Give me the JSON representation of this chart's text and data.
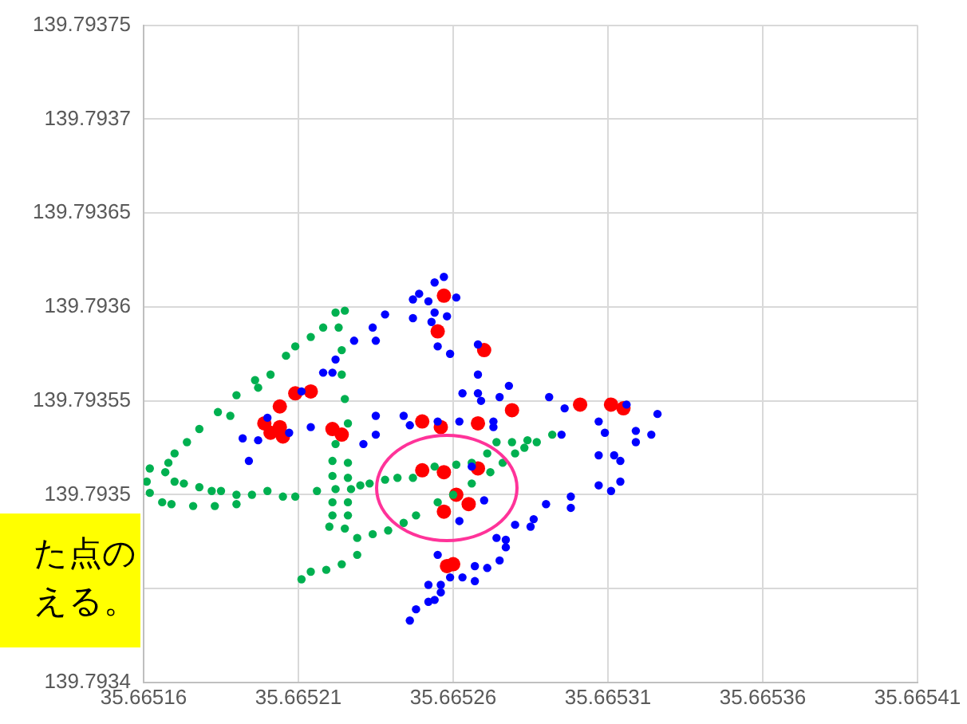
{
  "chart_data": {
    "type": "scatter",
    "marker": "circle",
    "grid": true,
    "legend": false,
    "xlim": [
      35.66516,
      35.66541
    ],
    "xticks": [
      35.66516,
      35.66521,
      35.66526,
      35.66531,
      35.66536,
      35.66541
    ],
    "ylim": [
      139.7934,
      139.79375
    ],
    "yticks": [
      139.7934,
      {
        "value": 139.79345,
        "label": null
      },
      139.7935,
      139.79355,
      139.7936,
      139.79365,
      139.7937,
      139.79375
    ],
    "annotations": [
      "た点の",
      "える。"
    ],
    "series": [
      {
        "color": "#0000ff",
        "x": [
          35.665257,
          35.665254,
          35.665249,
          35.665247,
          35.665252,
          35.665261,
          35.665247,
          35.665254,
          35.665258,
          35.665253,
          35.665255,
          35.665259,
          35.665268,
          35.665268,
          35.665238,
          35.665234,
          35.665235,
          35.665228,
          35.665218,
          35.665222,
          35.665221,
          35.665211,
          35.665268,
          35.665269,
          35.665263,
          35.665275,
          35.665278,
          35.665291,
          35.665296,
          35.665307,
          35.665309,
          35.665316,
          35.665319,
          35.665319,
          35.665324,
          35.665326,
          35.665307,
          35.665312,
          35.665314,
          35.665314,
          35.665311,
          35.665307,
          35.665298,
          35.665298,
          35.66529,
          35.665286,
          35.665285,
          35.66528,
          35.665277,
          35.665274,
          35.665277,
          35.665275,
          35.665271,
          35.665267,
          35.665267,
          35.665263,
          35.665259,
          35.665255,
          35.665256,
          35.665256,
          35.665254,
          35.665252,
          35.665248,
          35.665252,
          35.665246,
          35.665262,
          35.66527,
          35.665266,
          35.665262,
          35.665255,
          35.665246,
          35.665244,
          35.665235,
          35.665235,
          35.665231,
          35.665192,
          35.665197,
          35.665194,
          35.6652,
          35.665207,
          35.665214,
          35.665273,
          35.665273,
          35.665295
        ],
        "values": [
          139.793616,
          139.793613,
          139.793607,
          139.793604,
          139.793603,
          139.793605,
          139.793594,
          139.793597,
          139.793595,
          139.793592,
          139.793579,
          139.793575,
          139.79358,
          139.793564,
          139.793596,
          139.793589,
          139.793582,
          139.793582,
          139.793565,
          139.793572,
          139.793565,
          139.793555,
          139.793554,
          139.79355,
          139.793554,
          139.793552,
          139.793558,
          139.793552,
          139.793546,
          139.793539,
          139.793533,
          139.793548,
          139.793534,
          139.793528,
          139.793532,
          139.793543,
          139.793521,
          139.793521,
          139.793518,
          139.793507,
          139.793502,
          139.793505,
          139.793499,
          139.793493,
          139.793495,
          139.793487,
          139.793483,
          139.793484,
          139.793476,
          139.793477,
          139.793472,
          139.793465,
          139.793461,
          139.793462,
          139.793454,
          139.793456,
          139.793456,
          139.793468,
          139.793452,
          139.793448,
          139.793444,
          139.793443,
          139.793439,
          139.793452,
          139.793433,
          139.793486,
          139.793497,
          139.793515,
          139.793539,
          139.793539,
          139.793537,
          139.793542,
          139.793542,
          139.793532,
          139.793527,
          139.79353,
          139.793529,
          139.793518,
          139.793541,
          139.793533,
          139.793536,
          139.793539,
          139.793536,
          139.793532
        ]
      },
      {
        "color": "#00b050",
        "x": [
          35.665211,
          35.665214,
          35.665219,
          35.665224,
          35.665229,
          35.665234,
          35.665239,
          35.665244,
          35.665248,
          35.665255,
          35.66526,
          35.665266,
          35.665272,
          35.665276,
          35.66528,
          35.665283,
          35.665287,
          35.665292,
          35.665284,
          35.665279,
          35.665274,
          35.665271,
          35.665266,
          35.665261,
          35.665254,
          35.665247,
          35.665242,
          35.665238,
          35.665233,
          35.66523,
          35.665227,
          35.665222,
          35.665216,
          35.665209,
          35.665205,
          35.6652,
          35.665195,
          35.66519,
          35.665185,
          35.665182,
          35.665178,
          35.665173,
          35.66517,
          35.665167,
          35.665168,
          35.665162,
          35.665161,
          35.665162,
          35.665166,
          35.665169,
          35.665176,
          35.665183,
          35.66519,
          35.66517,
          35.665174,
          35.665178,
          35.665184,
          35.665188,
          35.66519,
          35.665196,
          35.665197,
          35.665201,
          35.665206,
          35.665209,
          35.665214,
          35.665218,
          35.665222,
          35.665225,
          35.665223,
          35.665224,
          35.665224,
          35.665225,
          35.665226,
          35.665222,
          35.665221,
          35.665226,
          35.665221,
          35.665226,
          35.665221,
          35.665226,
          35.665221,
          35.665226,
          35.66522,
          35.665225,
          35.665229
        ],
        "values": [
          139.793455,
          139.793459,
          139.79346,
          139.793463,
          139.793468,
          139.793479,
          139.793481,
          139.793485,
          139.793489,
          139.793496,
          139.7935,
          139.793506,
          139.793512,
          139.793517,
          139.793522,
          139.793525,
          139.793528,
          139.793532,
          139.793529,
          139.793528,
          139.793528,
          139.793522,
          139.793517,
          139.793516,
          139.793515,
          139.793509,
          139.793509,
          139.793508,
          139.793506,
          139.793505,
          139.793503,
          139.793503,
          139.793502,
          139.793499,
          139.793499,
          139.793502,
          139.7935,
          139.7935,
          139.793502,
          139.793502,
          139.793504,
          139.793506,
          139.793507,
          139.793512,
          139.793517,
          139.793514,
          139.793507,
          139.793501,
          139.793496,
          139.793495,
          139.793494,
          139.793494,
          139.793495,
          139.793522,
          139.793528,
          139.793535,
          139.793544,
          139.793542,
          139.793553,
          139.793561,
          139.793557,
          139.793564,
          139.793574,
          139.793579,
          139.793584,
          139.793589,
          139.793597,
          139.793598,
          139.793589,
          139.793577,
          139.793564,
          139.793551,
          139.793538,
          139.793527,
          139.793518,
          139.793517,
          139.79351,
          139.793509,
          139.793496,
          139.793496,
          139.793489,
          139.793489,
          139.793483,
          139.793482,
          139.793477
        ]
      },
      {
        "color": "#ff0000",
        "x": [
          35.665257,
          35.665255,
          35.66527,
          35.665204,
          35.665209,
          35.665214,
          35.665199,
          35.665201,
          35.665204,
          35.665205,
          35.665221,
          35.665224,
          35.66525,
          35.665256,
          35.665268,
          35.665279,
          35.665301,
          35.665311,
          35.665315,
          35.66525,
          35.665257,
          35.665268,
          35.665261,
          35.665265,
          35.665257,
          35.66526,
          35.665258
        ],
        "values": [
          139.793606,
          139.793587,
          139.793577,
          139.793547,
          139.793554,
          139.793555,
          139.793538,
          139.793533,
          139.793536,
          139.793531,
          139.793535,
          139.793532,
          139.793539,
          139.793536,
          139.793538,
          139.793545,
          139.793548,
          139.793548,
          139.793546,
          139.793513,
          139.793512,
          139.793514,
          139.7935,
          139.793495,
          139.793491,
          139.793463,
          139.793462
        ]
      }
    ]
  }
}
